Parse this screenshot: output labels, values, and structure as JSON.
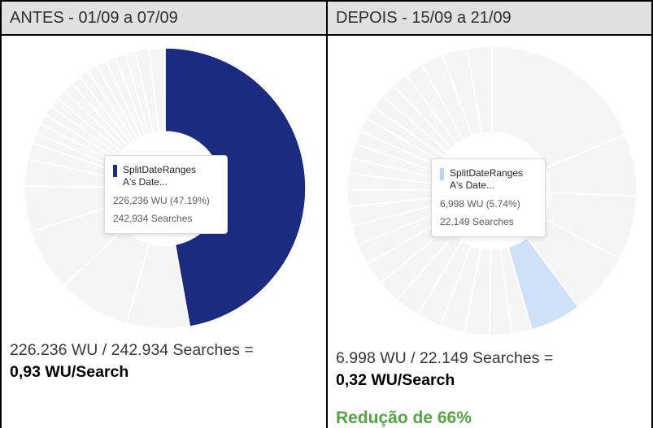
{
  "panels": [
    {
      "header": "ANTES - 01/09 a 07/09",
      "tooltip": {
        "title_line1": "SplitDateRanges",
        "title_line2": "A's Date...",
        "wu_line": "226,236 WU (47.19%)",
        "searches_line": "242,934 Searches",
        "marker_color": "#1b2b80"
      },
      "summary_equation": "226.236 WU / 242.934 Searches =",
      "summary_result": "0,93 WU/Search",
      "reduction_note": ""
    },
    {
      "header": "DEPOIS - 15/09 a 21/09",
      "tooltip": {
        "title_line1": "SplitDateRanges",
        "title_line2": "A's Date...",
        "wu_line": "6,998 WU (5.74%)",
        "searches_line": "22,149 Searches",
        "marker_color": "#b9d5f5"
      },
      "summary_equation": "6.998 WU / 22.149 Searches =",
      "summary_result": "0,32 WU/Search",
      "reduction_note": "Redução de 66%"
    }
  ],
  "colors": {
    "highlight_navy": "#1b2b80",
    "highlight_lightblue": "#cfe1f8",
    "other_slice_gray": "#f5f5f5",
    "reduction_green": "#55a344",
    "header_bg": "#e1e1e1"
  },
  "chart_data": [
    {
      "type": "pie",
      "title": "ANTES - 01/09 a 07/09",
      "subtype": "donut",
      "highlight": {
        "label": "SplitDateRanges A's Date...",
        "wu": 226236,
        "wu_pct": 47.19,
        "searches": 242934,
        "color": "#1b2b80"
      },
      "other_color": "#f5f5f5",
      "size": 350,
      "outer_radius": 173,
      "inner_radius": 70,
      "highlight_slice_index": 0,
      "slice_boundaries_deg": [
        0,
        169.9,
        196,
        226,
        252,
        271,
        282,
        289,
        293.2,
        297.4,
        301.6,
        305.8,
        310,
        314.2,
        318.4,
        322.6,
        326.8,
        331,
        335.2,
        339.4,
        343.6,
        347.8,
        353.5,
        360
      ]
    },
    {
      "type": "pie",
      "title": "DEPOIS - 15/09 a 21/09",
      "subtype": "donut",
      "highlight": {
        "label": "SplitDateRanges A's Date...",
        "wu": 6998,
        "wu_pct": 5.74,
        "searches": 22149,
        "color": "#cfe1f8"
      },
      "other_color": "#f5f5f5",
      "size": 360,
      "outer_radius": 178,
      "inner_radius": 72,
      "highlight_slice_index": 4,
      "slice_boundaries_deg": [
        0,
        67,
        92,
        118,
        143.3,
        164,
        172,
        181,
        191,
        201,
        211,
        221,
        230.5,
        239.5,
        248,
        256,
        263.5,
        270.5,
        277,
        283,
        289,
        294.5,
        300,
        305.5,
        311,
        317,
        323.5,
        331,
        340,
        350,
        360
      ]
    }
  ]
}
